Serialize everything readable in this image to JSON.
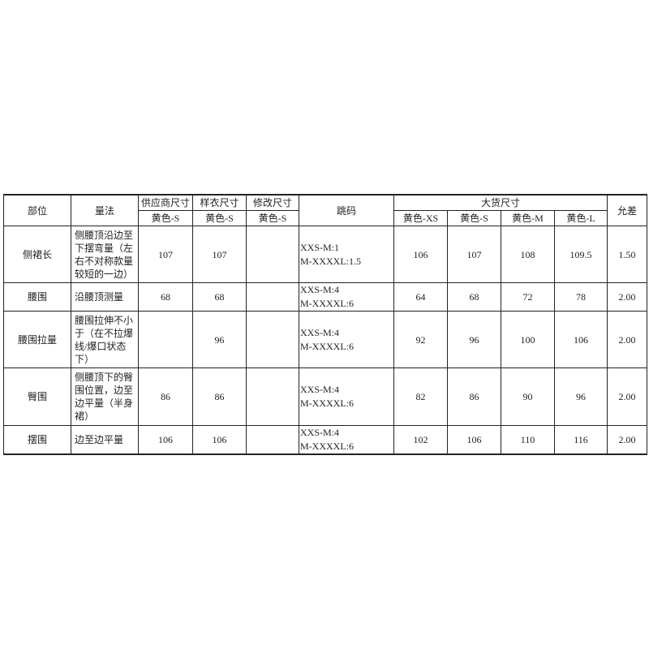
{
  "headers": {
    "part": "部位",
    "method": "量法",
    "supplier": "供应商尺寸",
    "sample": "样衣尺寸",
    "modified": "修改尺寸",
    "jump": "跳码",
    "bulk": "大货尺寸",
    "tolerance": "允差",
    "supplier_sub": "黄色-S",
    "sample_sub": "黄色-S",
    "modified_sub": "黄色-S",
    "bulk_sizes": [
      "黄色-XS",
      "黄色-S",
      "黄色-M",
      "黄色-L"
    ]
  },
  "rows": [
    {
      "part": "侧裙长",
      "method": "侧腰顶沿边至下摆弯量（左右不对称款量较短的一边）",
      "supplier": "107",
      "sample": "107",
      "modified": "",
      "jump": "XXS-M:1\nM-XXXXL:1.5",
      "bulk": [
        "106",
        "107",
        "108",
        "109.5"
      ],
      "tolerance": "1.50"
    },
    {
      "part": "腰围",
      "method": "沿腰顶测量",
      "supplier": "68",
      "sample": "68",
      "modified": "",
      "jump": "XXS-M:4\nM-XXXXL:6",
      "bulk": [
        "64",
        "68",
        "72",
        "78"
      ],
      "tolerance": "2.00"
    },
    {
      "part": "腰围拉量",
      "method": "腰围拉伸不小于（在不拉爆线/爆口状态下）",
      "supplier": "",
      "sample": "96",
      "modified": "",
      "jump": "XXS-M:4\nM-XXXXL:6",
      "bulk": [
        "92",
        "96",
        "100",
        "106"
      ],
      "tolerance": "2.00"
    },
    {
      "part": "臀围",
      "method": "侧腰顶下的臀围位置，边至边平量（半身裙）",
      "supplier": "86",
      "sample": "86",
      "modified": "",
      "jump": "XXS-M:4\nM-XXXXL:6",
      "bulk": [
        "82",
        "86",
        "90",
        "96"
      ],
      "tolerance": "2.00"
    },
    {
      "part": "摆围",
      "method": "边至边平量",
      "supplier": "106",
      "sample": "106",
      "modified": "",
      "jump": "XXS-M:4\nM-XXXXL:6",
      "bulk": [
        "102",
        "106",
        "110",
        "116"
      ],
      "tolerance": "2.00"
    }
  ]
}
